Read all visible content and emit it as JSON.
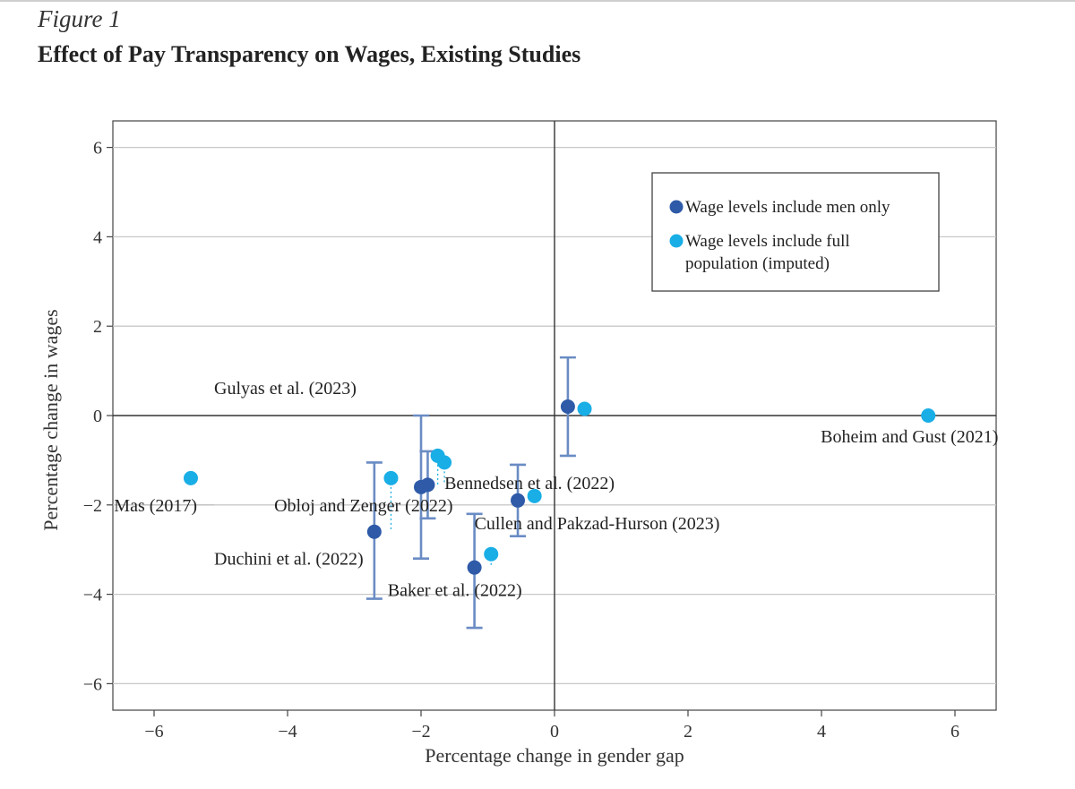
{
  "figure_label": "Figure 1",
  "figure_title": "Effect of Pay Transparency on Wages, Existing Studies",
  "colors": {
    "men_only": "#2e5aa8",
    "full_population": "#19aee6",
    "error_bar": "#6a8cc4",
    "grid": "#c8c8c8"
  },
  "chart_data": {
    "type": "scatter",
    "xlabel": "Percentage change in gender gap",
    "ylabel": "Percentage change in wages",
    "xlim": [
      -6.6,
      6.6
    ],
    "ylim": [
      -6.6,
      6.6
    ],
    "xticks": [
      -6,
      -4,
      -2,
      0,
      2,
      4,
      6
    ],
    "yticks": [
      -6,
      -4,
      -2,
      0,
      2,
      4,
      6
    ],
    "xtick_labels": [
      "−6",
      "−4",
      "−2",
      "0",
      "2",
      "4",
      "6"
    ],
    "ytick_labels": [
      "−6",
      "−4",
      "−2",
      "0",
      "2",
      "4",
      "6"
    ],
    "grid": "horizontal",
    "legend_position": "top-right",
    "legend": [
      {
        "series": "men_only",
        "lines": [
          "Wage levels include men only"
        ]
      },
      {
        "series": "full_population",
        "lines": [
          "Wage levels include full",
          "population (imputed)"
        ]
      }
    ],
    "series": [
      {
        "id": "men_only",
        "name": "Wage levels include men only",
        "points": [
          {
            "x": 0.2,
            "y": 0.2,
            "err_low": -0.9,
            "err_high": 1.3
          },
          {
            "x": -1.9,
            "y": -1.55,
            "err_low": -2.3,
            "err_high": -0.8
          },
          {
            "x": -2.0,
            "y": -1.6,
            "err_low": -3.2,
            "err_high": 0.0
          },
          {
            "x": -0.55,
            "y": -1.9,
            "err_low": -2.7,
            "err_high": -1.1
          },
          {
            "x": -2.7,
            "y": -2.6,
            "err_low": -4.1,
            "err_high": -1.05
          },
          {
            "x": -1.2,
            "y": -3.4,
            "err_low": -4.75,
            "err_high": -2.2
          }
        ]
      },
      {
        "id": "full_population",
        "name": "Wage levels include full population (imputed)",
        "points": [
          {
            "x": 0.45,
            "y": 0.15
          },
          {
            "x": 5.6,
            "y": 0.0
          },
          {
            "x": -5.45,
            "y": -1.4
          },
          {
            "x": -2.45,
            "y": -1.4
          },
          {
            "x": -1.75,
            "y": -0.9
          },
          {
            "x": -1.65,
            "y": -1.05
          },
          {
            "x": -0.3,
            "y": -1.8
          },
          {
            "x": -0.95,
            "y": -3.1
          }
        ]
      }
    ],
    "annotations": [
      {
        "text": "Gulyas et al. (2023)"
      },
      {
        "text": "Boheim and Gust (2021)"
      },
      {
        "text": "Bennedsen et al. (2022)"
      },
      {
        "text": "Mas (2017)"
      },
      {
        "text": "Obloj and Zenger (2022)"
      },
      {
        "text": "Cullen and Pakzad-Hurson (2023)"
      },
      {
        "text": "Duchini et al. (2022)"
      },
      {
        "text": "Baker et al. (2022)"
      }
    ]
  }
}
